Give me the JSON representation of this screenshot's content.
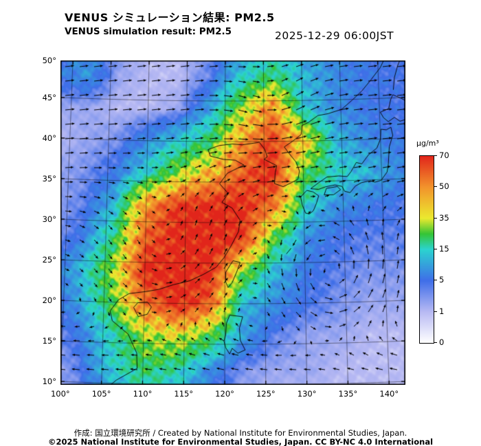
{
  "header": {
    "title_jp": "VENUS シミュレーション結果: PM2.5",
    "title_en": "VENUS simulation result: PM2.5",
    "timestamp": "2025-12-29 06:00JST"
  },
  "footer": {
    "credit": "作成: 国立環境研究所 / Created by National Institute for Environmental Studies, Japan.",
    "copyright": "©2025 National Institute for Environmental Studies, Japan. CC BY-NC 4.0 International"
  },
  "chart_data": {
    "type": "heatmap",
    "title": "VENUS simulation result: PM2.5",
    "variable": "PM2.5 surface concentration with wind vectors",
    "unit": "µg/m³",
    "x_axis": {
      "label": "longitude",
      "tick_values": [
        100,
        105,
        110,
        115,
        120,
        125,
        130,
        135,
        140
      ],
      "tick_labels": [
        "100°",
        "105°",
        "110°",
        "115°",
        "120°",
        "125°",
        "130°",
        "135°",
        "140°"
      ]
    },
    "y_axis": {
      "label": "latitude",
      "tick_values": [
        50,
        45,
        40,
        35,
        30,
        25,
        20,
        15,
        10
      ],
      "tick_labels": [
        "50°",
        "45°",
        "40°",
        "35°",
        "30°",
        "25°",
        "20°",
        "15°",
        "10°"
      ]
    },
    "colorbar": {
      "unit": "µg/m³",
      "stops": [
        {
          "value": 0,
          "pos": 0.0,
          "color": "#ffffff",
          "label": "0"
        },
        {
          "value": 1,
          "pos": 0.1667,
          "color": "#b7b9f3",
          "label": "1"
        },
        {
          "value": 5,
          "pos": 0.3333,
          "color": "#3f6ee8",
          "label": "5"
        },
        {
          "value": 15,
          "pos": 0.5,
          "color": "#2bd3cf",
          "label": "15"
        },
        {
          "value": 25,
          "pos": 0.5833,
          "color": "#35c435",
          "label": null
        },
        {
          "value": 35,
          "pos": 0.6667,
          "color": "#ebe92f",
          "label": "35"
        },
        {
          "value": 50,
          "pos": 0.8333,
          "color": "#f2932c",
          "label": "50"
        },
        {
          "value": 70,
          "pos": 1.0,
          "color": "#e1251b",
          "label": "70"
        }
      ]
    },
    "grid": {
      "lon": [
        98,
        102,
        106,
        110,
        114,
        118,
        122,
        126,
        130,
        134,
        138,
        142,
        146
      ],
      "lat": [
        52,
        48,
        44,
        40,
        36,
        32,
        28,
        24,
        20,
        16,
        12,
        8
      ],
      "values_ugm3": [
        [
          5,
          7,
          3,
          1,
          1,
          3,
          8,
          12,
          10,
          7,
          6,
          5,
          4
        ],
        [
          6,
          9,
          2,
          1,
          1,
          4,
          14,
          22,
          12,
          8,
          6,
          5,
          4
        ],
        [
          2,
          2,
          1,
          1,
          2,
          10,
          30,
          52,
          14,
          8,
          6,
          5,
          4
        ],
        [
          1,
          2,
          3,
          8,
          14,
          22,
          48,
          65,
          42,
          12,
          8,
          6,
          5
        ],
        [
          2,
          3,
          6,
          15,
          30,
          45,
          60,
          70,
          25,
          16,
          12,
          8,
          5
        ],
        [
          2,
          4,
          12,
          50,
          68,
          70,
          70,
          55,
          15,
          8,
          6,
          5,
          4
        ],
        [
          2,
          6,
          20,
          60,
          70,
          70,
          68,
          25,
          8,
          5,
          4,
          4,
          3
        ],
        [
          4,
          12,
          30,
          70,
          70,
          70,
          30,
          12,
          6,
          4,
          3,
          3,
          3
        ],
        [
          3,
          10,
          25,
          55,
          70,
          60,
          12,
          8,
          5,
          3,
          2,
          2,
          2
        ],
        [
          2,
          6,
          16,
          30,
          35,
          25,
          10,
          4,
          2,
          2,
          1,
          1,
          1
        ],
        [
          1,
          4,
          14,
          22,
          18,
          8,
          3,
          2,
          2,
          1,
          1,
          1,
          1
        ],
        [
          1,
          3,
          8,
          14,
          10,
          5,
          2,
          1,
          1,
          1,
          1,
          1,
          1
        ]
      ]
    },
    "wind": {
      "v_base": 0.25,
      "zonal_profile": [
        [
          8,
          -2.2
        ],
        [
          14,
          -1.8
        ],
        [
          18,
          -0.7
        ],
        [
          23,
          0.3
        ],
        [
          28,
          1.0
        ],
        [
          34,
          1.9
        ],
        [
          42,
          2.5
        ],
        [
          52,
          2.1
        ]
      ],
      "vortices": [
        {
          "lon": 133.5,
          "lat": 23.5,
          "radius": 7,
          "strength": 2.2
        },
        {
          "lon": 113,
          "lat": 26,
          "radius": 9,
          "strength": 1.1
        },
        {
          "lon": 126,
          "lat": 44,
          "radius": 5,
          "strength": 0.8
        }
      ]
    },
    "coastlines": [
      [
        [
          105,
          8.8
        ],
        [
          106.8,
          10.4
        ],
        [
          109.3,
          11.9
        ],
        [
          109.2,
          13.8
        ],
        [
          108.1,
          16.1
        ],
        [
          106.1,
          17.7
        ],
        [
          105.8,
          18.9
        ],
        [
          106.8,
          20.3
        ],
        [
          108.1,
          21.1
        ],
        [
          110.2,
          21.4
        ],
        [
          111.8,
          21.7
        ],
        [
          113.6,
          22.3
        ],
        [
          115.6,
          22.8
        ],
        [
          117.3,
          23.6
        ],
        [
          118.9,
          24.5
        ],
        [
          119.9,
          25.7
        ],
        [
          120.8,
          27.2
        ],
        [
          121.7,
          28.9
        ],
        [
          121.9,
          30.3
        ],
        [
          120.9,
          31.8
        ],
        [
          119.6,
          32.5
        ],
        [
          120.4,
          33.6
        ],
        [
          119.3,
          34.8
        ],
        [
          120.3,
          36.1
        ],
        [
          122.4,
          37.1
        ],
        [
          121.3,
          37.7
        ],
        [
          119.8,
          37.8
        ],
        [
          118.1,
          38.2
        ],
        [
          117.8,
          39.0
        ],
        [
          119.2,
          39.5
        ],
        [
          120.9,
          39.7
        ],
        [
          122.2,
          39.6
        ],
        [
          123.7,
          39.8
        ],
        [
          124.4,
          39.9
        ],
        [
          125.1,
          39.0
        ],
        [
          125.4,
          38.1
        ],
        [
          125.0,
          37.8
        ],
        [
          126.6,
          37.0
        ],
        [
          126.4,
          36.1
        ],
        [
          126.3,
          34.8
        ],
        [
          127.4,
          34.4
        ],
        [
          128.5,
          34.9
        ],
        [
          129.3,
          35.3
        ],
        [
          129.5,
          36.3
        ],
        [
          129.1,
          37.4
        ],
        [
          128.2,
          38.5
        ],
        [
          127.6,
          39.3
        ],
        [
          128.7,
          40.0
        ],
        [
          129.8,
          40.8
        ],
        [
          129.9,
          41.9
        ],
        [
          130.8,
          42.3
        ],
        [
          132.0,
          43.1
        ],
        [
          133.3,
          43.3
        ],
        [
          135.1,
          43.8
        ],
        [
          136.5,
          44.9
        ],
        [
          137.8,
          46.0
        ],
        [
          139.0,
          47.3
        ],
        [
          140.3,
          48.8
        ],
        [
          141.3,
          50.6
        ]
      ],
      [
        [
          120.1,
          22.7
        ],
        [
          120.1,
          23.9
        ],
        [
          121.0,
          25.3
        ],
        [
          121.9,
          25.1
        ],
        [
          121.5,
          24.0
        ],
        [
          120.9,
          22.6
        ],
        [
          120.4,
          22.0
        ],
        [
          120.1,
          22.7
        ]
      ],
      [
        [
          108.7,
          19.4
        ],
        [
          109.2,
          20.0
        ],
        [
          110.4,
          20.1
        ],
        [
          110.9,
          19.5
        ],
        [
          110.4,
          18.6
        ],
        [
          109.3,
          18.3
        ],
        [
          108.7,
          19.4
        ]
      ],
      [
        [
          130.2,
          31.1
        ],
        [
          129.8,
          32.1
        ],
        [
          129.6,
          33.1
        ],
        [
          130.4,
          33.9
        ],
        [
          131.2,
          33.7
        ],
        [
          131.9,
          33.2
        ],
        [
          131.6,
          32.3
        ],
        [
          131.2,
          31.4
        ],
        [
          130.7,
          31.0
        ],
        [
          130.2,
          31.1
        ]
      ],
      [
        [
          132.6,
          33.3
        ],
        [
          132.9,
          34.1
        ],
        [
          134.3,
          34.3
        ],
        [
          134.7,
          33.9
        ],
        [
          133.8,
          33.3
        ],
        [
          132.6,
          33.3
        ]
      ],
      [
        [
          130.9,
          34.1
        ],
        [
          131.9,
          34.8
        ],
        [
          133.0,
          35.5
        ],
        [
          134.5,
          35.6
        ],
        [
          135.6,
          35.5
        ],
        [
          136.1,
          36.1
        ],
        [
          136.8,
          37.2
        ],
        [
          137.5,
          37.0
        ],
        [
          138.4,
          38.1
        ],
        [
          139.5,
          38.9
        ],
        [
          140.0,
          40.0
        ],
        [
          140.1,
          41.2
        ],
        [
          140.8,
          41.1
        ],
        [
          141.4,
          41.4
        ],
        [
          141.6,
          40.4
        ],
        [
          141.1,
          39.0
        ],
        [
          141.0,
          38.0
        ],
        [
          140.9,
          36.9
        ],
        [
          140.7,
          35.9
        ],
        [
          139.9,
          34.9
        ],
        [
          139.1,
          34.7
        ],
        [
          138.5,
          34.9
        ],
        [
          137.4,
          34.7
        ],
        [
          136.6,
          34.3
        ],
        [
          135.9,
          33.5
        ],
        [
          135.2,
          33.7
        ],
        [
          134.9,
          34.3
        ],
        [
          134.0,
          34.5
        ],
        [
          132.8,
          34.3
        ],
        [
          131.9,
          34.0
        ],
        [
          130.9,
          34.1
        ]
      ],
      [
        [
          140.5,
          42.6
        ],
        [
          140.1,
          43.3
        ],
        [
          141.2,
          43.7
        ],
        [
          141.5,
          44.8
        ],
        [
          141.8,
          45.4
        ],
        [
          142.9,
          44.9
        ],
        [
          144.3,
          44.1
        ],
        [
          145.4,
          44.3
        ],
        [
          145.8,
          43.4
        ],
        [
          144.6,
          43.0
        ],
        [
          143.4,
          42.3
        ],
        [
          142.6,
          42.1
        ],
        [
          141.9,
          42.6
        ],
        [
          141.1,
          42.1
        ],
        [
          140.5,
          42.6
        ]
      ],
      [
        [
          141.9,
          46.0
        ],
        [
          142.1,
          47.5
        ],
        [
          142.6,
          49.0
        ],
        [
          143.3,
          50.4
        ]
      ],
      [
        [
          120.1,
          16.1
        ],
        [
          120.2,
          17.6
        ],
        [
          120.6,
          18.6
        ],
        [
          122.2,
          18.4
        ],
        [
          121.8,
          17.0
        ],
        [
          121.9,
          15.5
        ],
        [
          122.5,
          14.3
        ],
        [
          121.6,
          13.9
        ],
        [
          120.9,
          14.5
        ],
        [
          120.6,
          13.8
        ],
        [
          120.1,
          14.6
        ],
        [
          119.9,
          15.4
        ],
        [
          120.1,
          16.1
        ]
      ],
      [
        [
          127.7,
          26.1
        ],
        [
          128.3,
          26.8
        ]
      ]
    ]
  }
}
